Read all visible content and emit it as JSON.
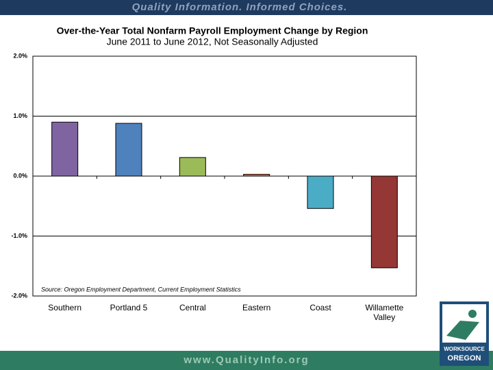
{
  "banner": "Quality Information. Informed Choices.",
  "footer": "www.QualityInfo.org",
  "logo": [
    "WORKSOURCE",
    "OREGON"
  ],
  "chart_data": {
    "type": "bar",
    "title": "Over-the-Year Total Nonfarm Payroll Employment Change by Region",
    "subtitle": "June 2011 to June 2012, Not Seasonally Adjusted",
    "source": "Source: Oregon Employment Department, Current Employment Statistics",
    "categories": [
      "Southern",
      "Portland 5",
      "Central",
      "Eastern",
      "Coast",
      "Willamette Valley"
    ],
    "values": [
      0.9,
      0.88,
      0.31,
      0.03,
      -0.54,
      -1.53
    ],
    "colors": [
      "#8064a2",
      "#4f81bd",
      "#9bbb59",
      "#e46c4a",
      "#4bacc6",
      "#953735"
    ],
    "ylim": [
      -2,
      2
    ],
    "yticks": [
      {
        "value": -2,
        "label": "-2.0%"
      },
      {
        "value": -1,
        "label": "-1.0%"
      },
      {
        "value": 0,
        "label": "0.0%"
      },
      {
        "value": 1,
        "label": "1.0%"
      },
      {
        "value": 2,
        "label": "2.0%"
      }
    ],
    "grid": true
  }
}
